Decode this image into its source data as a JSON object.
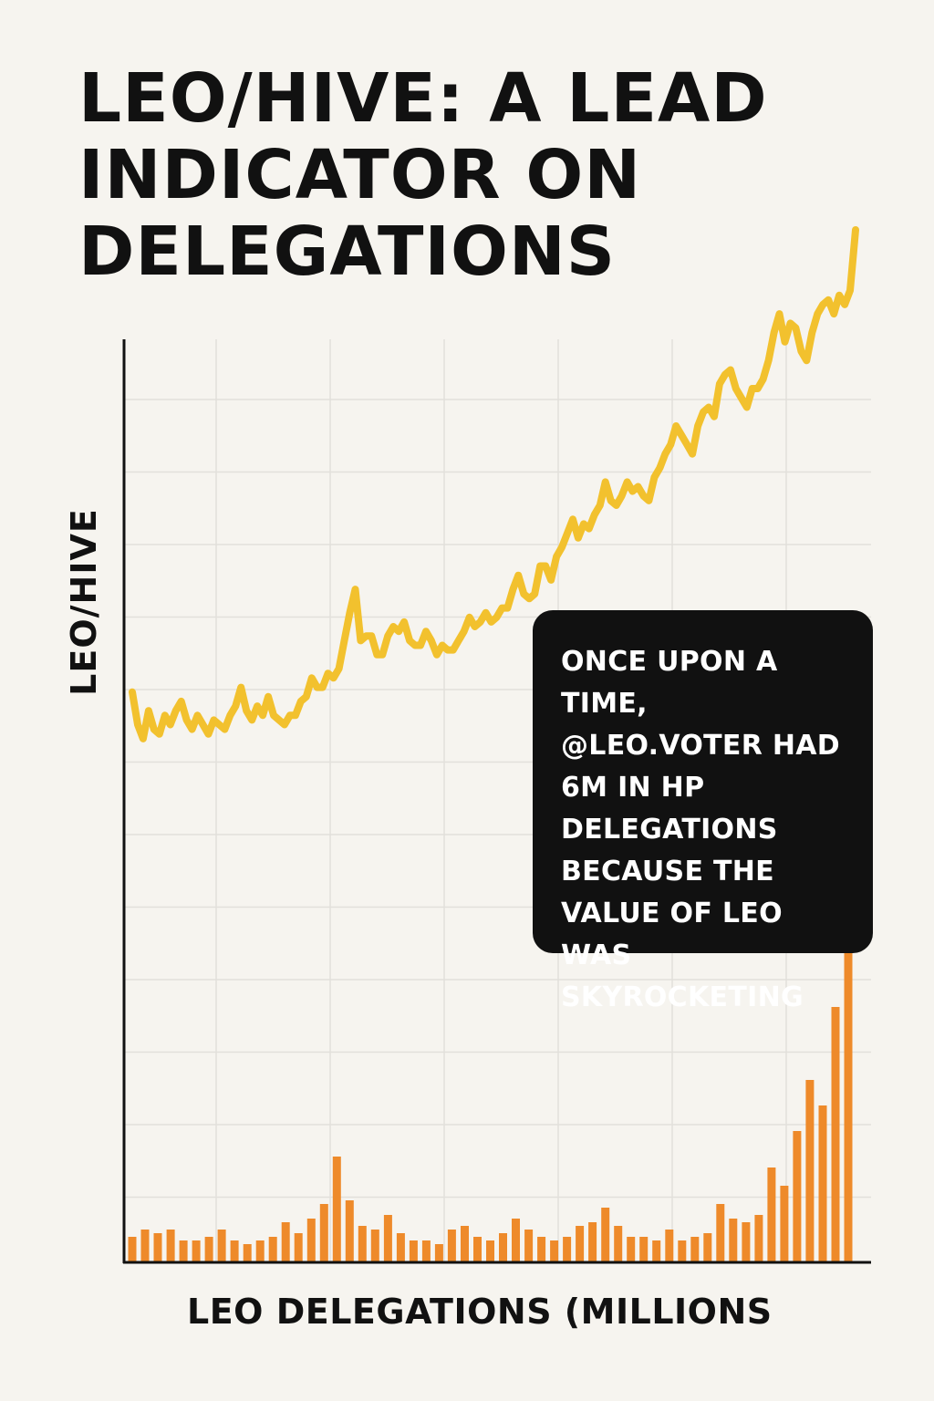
{
  "title": "LEO/HIVE: A LEAD INDICATOR ON DELEGATIONS",
  "annotation": "ONCE UPON A TIME, @LEO.VOTER HAD 6M IN HP DELEGATIONS BECAUSE THE VALUE OF LEO WAS SKYROCKETING",
  "colors": {
    "line": "#f2c12e",
    "bars": "#ee8a2a",
    "grid": "#e2e0db",
    "axis": "#111111",
    "callout_bg": "#111111"
  },
  "chart_data": {
    "type": "line+bar",
    "title": "LEO/HIVE: A LEAD INDICATOR ON DELEGATIONS",
    "ylabel": "LEO/HIVE",
    "xlabel": "LEO DELEGATIONS (MILLIONS",
    "grid": true,
    "legend": "none",
    "series": [
      {
        "type": "line",
        "axis": "LEO/HIVE",
        "values": [
          1.55,
          1.2,
          1.05,
          1.35,
          1.15,
          1.1,
          1.3,
          1.2,
          1.35,
          1.45,
          1.25,
          1.15,
          1.3,
          1.2,
          1.1,
          1.25,
          1.2,
          1.15,
          1.3,
          1.4,
          1.6,
          1.35,
          1.25,
          1.4,
          1.3,
          1.5,
          1.3,
          1.25,
          1.2,
          1.3,
          1.3,
          1.45,
          1.5,
          1.7,
          1.6,
          1.6,
          1.75,
          1.7,
          1.8,
          2.1,
          2.4,
          2.65,
          2.1,
          2.15,
          2.15,
          1.95,
          1.95,
          2.15,
          2.25,
          2.2,
          2.3,
          2.1,
          2.05,
          2.05,
          2.2,
          2.1,
          1.95,
          2.05,
          2.0,
          2.0,
          2.1,
          2.2,
          2.35,
          2.25,
          2.3,
          2.4,
          2.3,
          2.35,
          2.45,
          2.45,
          2.65,
          2.8,
          2.6,
          2.55,
          2.6,
          2.9,
          2.9,
          2.75,
          3.0,
          3.1,
          3.25,
          3.4,
          3.2,
          3.35,
          3.3,
          3.45,
          3.55,
          3.8,
          3.6,
          3.55,
          3.65,
          3.8,
          3.7,
          3.75,
          3.65,
          3.6,
          3.85,
          3.95,
          4.1,
          4.2,
          4.4,
          4.3,
          4.2,
          4.1,
          4.4,
          4.55,
          4.6,
          4.5,
          4.85,
          4.95,
          5.0,
          4.8,
          4.7,
          4.6,
          4.8,
          4.8,
          4.9,
          5.1,
          5.4,
          5.6,
          5.3,
          5.5,
          5.45,
          5.2,
          5.1,
          5.4,
          5.6,
          5.7,
          5.75,
          5.6,
          5.8,
          5.7,
          5.85,
          6.5
        ]
      },
      {
        "type": "bar",
        "axis": "LEO DELEGATIONS (MILLIONS",
        "values": [
          0.35,
          0.45,
          0.4,
          0.45,
          0.3,
          0.3,
          0.35,
          0.45,
          0.3,
          0.25,
          0.3,
          0.35,
          0.55,
          0.4,
          0.6,
          0.8,
          1.45,
          0.85,
          0.5,
          0.45,
          0.65,
          0.4,
          0.3,
          0.3,
          0.25,
          0.45,
          0.5,
          0.35,
          0.3,
          0.4,
          0.6,
          0.45,
          0.35,
          0.3,
          0.35,
          0.5,
          0.55,
          0.75,
          0.5,
          0.35,
          0.35,
          0.3,
          0.45,
          0.3,
          0.35,
          0.4,
          0.8,
          0.6,
          0.55,
          0.65,
          1.3,
          1.05,
          1.8,
          2.5,
          2.15,
          3.5,
          4.8
        ]
      }
    ]
  }
}
